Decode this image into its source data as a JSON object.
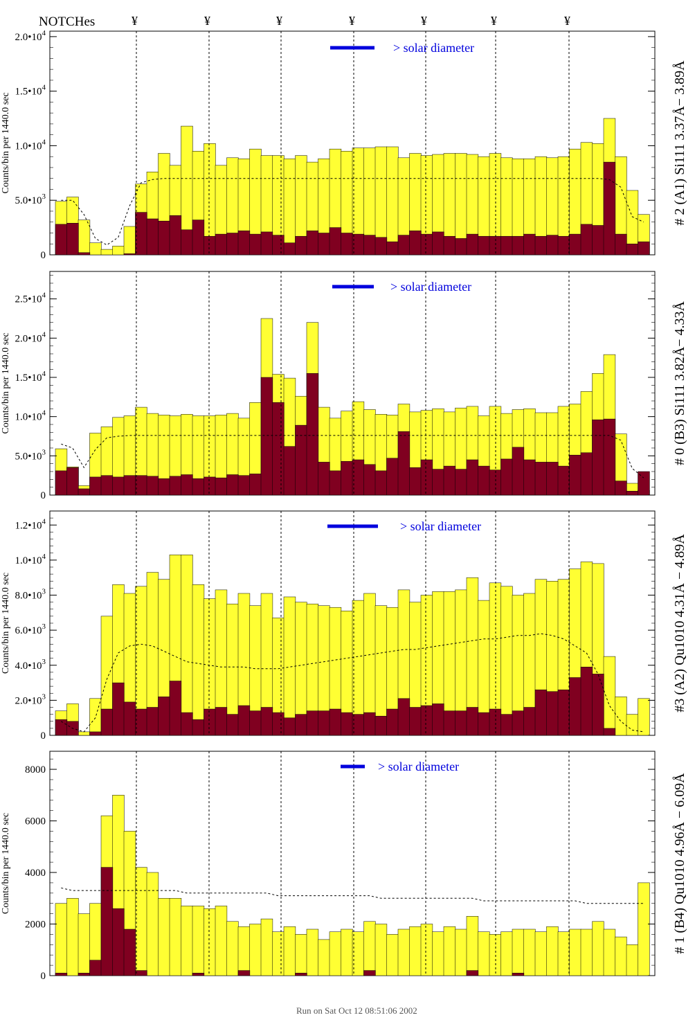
{
  "header": {
    "notches_label": "NOTCHes",
    "notch_marker": "¥",
    "footer_text": "Run on Sat Oct 12 08:51:06 2002"
  },
  "colors": {
    "yellow": "#ffff33",
    "darkred": "#800020",
    "blue": "#0000dd",
    "annot_blue": "#0000aa"
  },
  "chart_data": [
    {
      "type": "area",
      "title": "# 2 (A1) Si111  3.37Å− 3.89Å",
      "ylabel": "Counts/bin per  1440.0 sec",
      "legend_text": "> solar diameter",
      "ylim": [
        0,
        20500
      ],
      "yticks": [
        {
          "value": 0,
          "label": "0"
        },
        {
          "value": 5000,
          "label": "5.0•10^3"
        },
        {
          "value": 10000,
          "label": "1.0•10^4"
        },
        {
          "value": 15000,
          "label": "1.5•10^4"
        },
        {
          "value": 20000,
          "label": "2.0•10^4"
        }
      ],
      "series": [
        {
          "name": "total",
          "color": "yellow",
          "values": [
            4900,
            5300,
            3200,
            1100,
            500,
            800,
            2600,
            6500,
            7600,
            9300,
            8200,
            11800,
            9500,
            10200,
            8200,
            8900,
            8800,
            9700,
            9100,
            9100,
            8800,
            9100,
            8500,
            8800,
            9700,
            9500,
            9800,
            9800,
            9900,
            9900,
            8900,
            9300,
            9100,
            9200,
            9300,
            9300,
            9200,
            9000,
            9300,
            8900,
            8800,
            8800,
            9000,
            8900,
            9000,
            9700,
            10300,
            10200,
            12500,
            9000,
            5900,
            3700
          ]
        },
        {
          "name": "fluorescence",
          "color": "darkred",
          "values": [
            2800,
            2900,
            200,
            0,
            0,
            0,
            100,
            3900,
            3300,
            3100,
            3600,
            2300,
            3200,
            1700,
            1900,
            2000,
            2200,
            1900,
            2100,
            1800,
            1100,
            1700,
            2200,
            2000,
            2500,
            2000,
            1900,
            1800,
            1600,
            1200,
            1800,
            2200,
            1900,
            2100,
            1700,
            1500,
            1900,
            1700,
            1700,
            1700,
            1700,
            1900,
            1700,
            1800,
            1700,
            1900,
            2800,
            2700,
            8500,
            1900,
            1000,
            1200
          ]
        },
        {
          "name": "model",
          "color": "black",
          "values": [
            5000,
            5000,
            3700,
            1500,
            900,
            1600,
            4500,
            6600,
            6900,
            7000,
            7000,
            7000,
            7000,
            7000,
            7000,
            7000,
            7000,
            7000,
            7000,
            7000,
            7000,
            7000,
            7000,
            7000,
            7000,
            7000,
            7000,
            7000,
            7000,
            7000,
            7000,
            7000,
            7000,
            7000,
            7000,
            7000,
            7000,
            7000,
            7000,
            7000,
            7000,
            7000,
            7000,
            7000,
            7000,
            7000,
            7000,
            7000,
            6900,
            6200,
            3500,
            3000
          ]
        }
      ]
    },
    {
      "type": "area",
      "title": "# 0 (B3) Si111  3.82Å− 4.33Å",
      "ylabel": "Counts/bin per  1440.0 sec",
      "legend_text": "> solar diameter",
      "ylim": [
        0,
        28500
      ],
      "yticks": [
        {
          "value": 0,
          "label": "0"
        },
        {
          "value": 5000,
          "label": "5.0•10^3"
        },
        {
          "value": 10000,
          "label": "1.0•10^4"
        },
        {
          "value": 15000,
          "label": "1.5•10^4"
        },
        {
          "value": 20000,
          "label": "2.0•10^4"
        },
        {
          "value": 25000,
          "label": "2.5•10^4"
        }
      ],
      "series": [
        {
          "name": "total",
          "color": "yellow",
          "values": [
            5900,
            3600,
            1200,
            7900,
            8700,
            9900,
            10100,
            11200,
            10400,
            10200,
            10100,
            10300,
            10100,
            10100,
            10200,
            10400,
            9800,
            11800,
            22500,
            15400,
            14900,
            12600,
            22000,
            11200,
            9800,
            10700,
            11900,
            10900,
            10300,
            10200,
            11600,
            10600,
            10800,
            11000,
            10600,
            11100,
            11300,
            10100,
            11300,
            10400,
            10900,
            11000,
            10500,
            10500,
            11300,
            11600,
            13200,
            15500,
            17900,
            7800,
            1500,
            600
          ]
        },
        {
          "name": "fluorescence",
          "color": "darkred",
          "values": [
            3100,
            3500,
            800,
            2300,
            2500,
            2300,
            2500,
            2500,
            2400,
            2100,
            2400,
            2600,
            2100,
            2300,
            2200,
            2600,
            2500,
            2700,
            15000,
            11800,
            6200,
            8900,
            15500,
            4200,
            3100,
            4300,
            4500,
            3900,
            3100,
            4700,
            8100,
            3500,
            4500,
            3300,
            3700,
            3300,
            4500,
            3700,
            3200,
            4600,
            6100,
            4500,
            4200,
            4200,
            3700,
            5100,
            5400,
            9600,
            9700,
            1800,
            500,
            3000
          ]
        },
        {
          "name": "model",
          "color": "black",
          "values": [
            6500,
            6000,
            3500,
            5800,
            7300,
            7500,
            7600,
            7600,
            7600,
            7600,
            7600,
            7600,
            7600,
            7600,
            7600,
            7600,
            7600,
            7600,
            7600,
            7600,
            7600,
            7600,
            7600,
            7600,
            7600,
            7600,
            7600,
            7600,
            7600,
            7600,
            7600,
            7600,
            7600,
            7600,
            7600,
            7600,
            7600,
            7600,
            7600,
            7600,
            7600,
            7600,
            7600,
            7600,
            7600,
            7600,
            7600,
            7600,
            7600,
            7000,
            3400,
            2200
          ]
        }
      ]
    },
    {
      "type": "area",
      "title": "#3 (A2) Qu1010  4.31Å − 4.89Å",
      "ylabel": "Counts/bin per  1440.0 sec",
      "legend_text": "> solar diameter",
      "ylim": [
        0,
        12800
      ],
      "yticks": [
        {
          "value": 0,
          "label": "0"
        },
        {
          "value": 2000,
          "label": "2.0•10^3"
        },
        {
          "value": 4000,
          "label": "4.0•10^3"
        },
        {
          "value": 6000,
          "label": "6.0•10^3"
        },
        {
          "value": 8000,
          "label": "8.0•10^3"
        },
        {
          "value": 10000,
          "label": "1.0•10^4"
        },
        {
          "value": 12000,
          "label": "1.2•10^4"
        }
      ],
      "series": [
        {
          "name": "total",
          "color": "yellow",
          "values": [
            1400,
            1800,
            200,
            2100,
            6800,
            8600,
            8100,
            8500,
            9300,
            8900,
            10300,
            10300,
            8600,
            7800,
            8300,
            7500,
            8100,
            7400,
            8100,
            6700,
            7900,
            7600,
            7500,
            7400,
            7300,
            7100,
            7700,
            8100,
            7400,
            7300,
            8300,
            7600,
            8000,
            8200,
            8200,
            8300,
            9000,
            7700,
            8700,
            8500,
            8000,
            8100,
            8900,
            8800,
            8900,
            9500,
            9900,
            9800,
            4500,
            2200,
            1200,
            2100
          ]
        },
        {
          "name": "fluorescence",
          "color": "darkred",
          "values": [
            900,
            800,
            0,
            200,
            1500,
            3000,
            1900,
            1500,
            1600,
            2200,
            3100,
            1300,
            900,
            1500,
            1600,
            1200,
            1700,
            1400,
            1600,
            1300,
            1000,
            1200,
            1400,
            1400,
            1500,
            1300,
            1200,
            1300,
            1100,
            1500,
            2100,
            1600,
            1700,
            1800,
            1400,
            1400,
            1600,
            1300,
            1500,
            1200,
            1400,
            1600,
            2600,
            2500,
            2600,
            3300,
            3900,
            3500,
            400,
            0,
            0,
            0
          ]
        },
        {
          "name": "model",
          "color": "black",
          "values": [
            800,
            400,
            200,
            1000,
            3200,
            4700,
            5100,
            5200,
            5100,
            4800,
            4500,
            4200,
            4100,
            4000,
            3900,
            3900,
            3900,
            3800,
            3800,
            3800,
            3900,
            4000,
            4100,
            4200,
            4300,
            4400,
            4500,
            4600,
            4700,
            4800,
            4900,
            4900,
            5000,
            5100,
            5200,
            5300,
            5400,
            5500,
            5500,
            5600,
            5700,
            5700,
            5800,
            5700,
            5500,
            5100,
            4700,
            3500,
            1700,
            800,
            300,
            200
          ]
        }
      ]
    },
    {
      "type": "area",
      "title": "# 1 (B4) Qu1010 4.96Å − 6.09Å",
      "ylabel": "Counts/bin per  1440.0 sec",
      "legend_text": "> solar diameter",
      "ylim": [
        0,
        8700
      ],
      "yticks": [
        {
          "value": 0,
          "label": "0"
        },
        {
          "value": 2000,
          "label": "2000"
        },
        {
          "value": 4000,
          "label": "4000"
        },
        {
          "value": 6000,
          "label": "6000"
        },
        {
          "value": 8000,
          "label": "8000"
        }
      ],
      "series": [
        {
          "name": "total",
          "color": "yellow",
          "values": [
            2800,
            3000,
            2400,
            2800,
            6200,
            7000,
            5600,
            4200,
            4000,
            3000,
            3000,
            2700,
            2700,
            2600,
            2700,
            2100,
            1900,
            2000,
            2200,
            1700,
            1900,
            1600,
            1800,
            1400,
            1700,
            1800,
            1700,
            2100,
            2000,
            1600,
            1800,
            1900,
            2000,
            1700,
            1900,
            1800,
            2300,
            1700,
            1600,
            1700,
            1800,
            1800,
            1700,
            1900,
            1700,
            1800,
            1800,
            2100,
            1800,
            1500,
            1200,
            3600
          ]
        },
        {
          "name": "fluorescence",
          "color": "darkred",
          "values": [
            100,
            0,
            100,
            600,
            4200,
            2600,
            1800,
            200,
            0,
            0,
            0,
            0,
            100,
            0,
            0,
            0,
            200,
            0,
            0,
            0,
            0,
            100,
            0,
            0,
            0,
            0,
            0,
            200,
            0,
            0,
            0,
            0,
            0,
            0,
            0,
            0,
            200,
            0,
            0,
            0,
            100,
            0,
            0,
            0,
            0,
            0,
            0,
            0,
            0,
            0,
            0,
            0
          ]
        },
        {
          "name": "model",
          "color": "black",
          "values": [
            3400,
            3300,
            3300,
            3300,
            3300,
            3300,
            3300,
            3300,
            3300,
            3300,
            3300,
            3200,
            3200,
            3200,
            3200,
            3200,
            3200,
            3200,
            3200,
            3100,
            3100,
            3100,
            3100,
            3100,
            3100,
            3100,
            3100,
            3100,
            3000,
            3000,
            3000,
            3000,
            3000,
            3000,
            3000,
            3000,
            3000,
            2900,
            2900,
            2900,
            2900,
            2900,
            2900,
            2900,
            2900,
            2900,
            2800,
            2800,
            2800,
            2800,
            2800,
            2800
          ]
        }
      ]
    }
  ]
}
